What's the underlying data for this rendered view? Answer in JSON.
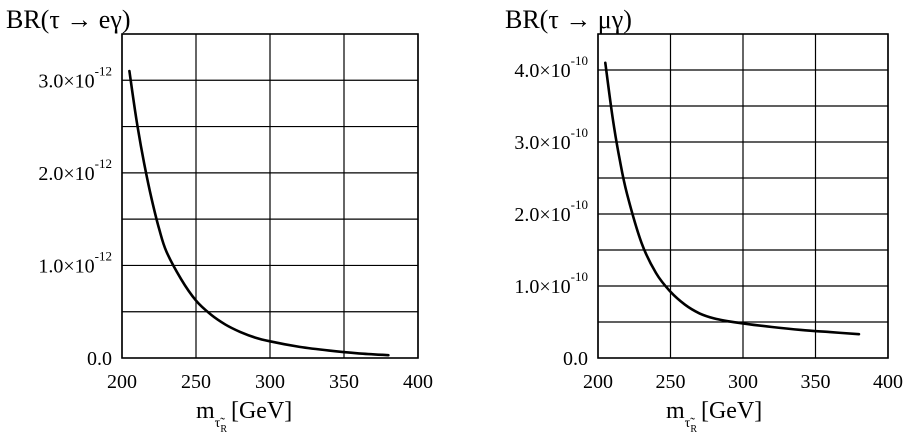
{
  "chart_data": [
    {
      "type": "line",
      "title": "BR(τ → eγ)",
      "xlabel": {
        "base": "m",
        "sub": "τ̃",
        "subsub": "R",
        "unit": "[GeV]"
      },
      "ylabel": "",
      "xlim": [
        200,
        400
      ],
      "ylim": [
        0,
        3.5e-12
      ],
      "grid": true,
      "x_ticks": [
        {
          "value": 200,
          "label": "200"
        },
        {
          "value": 250,
          "label": "250"
        },
        {
          "value": 300,
          "label": "300"
        },
        {
          "value": 350,
          "label": "350"
        },
        {
          "value": 400,
          "label": "400"
        }
      ],
      "y_ticks": [
        {
          "value": 0,
          "mant": "0.0",
          "exp": ""
        },
        {
          "value": 1e-12,
          "mant": "1.0×10",
          "exp": "-12"
        },
        {
          "value": 2e-12,
          "mant": "2.0×10",
          "exp": "-12"
        },
        {
          "value": 3e-12,
          "mant": "3.0×10",
          "exp": "-12"
        }
      ],
      "y_grid": [
        5e-13,
        1e-12,
        1.5e-12,
        2e-12,
        2.5e-12,
        3e-12
      ],
      "series": [
        {
          "x": [
            205,
            210,
            215,
            220,
            225,
            230,
            240,
            250,
            260,
            270,
            280,
            290,
            300,
            320,
            340,
            360,
            380
          ],
          "y": [
            3.1e-12,
            2.55e-12,
            2.1e-12,
            1.72e-12,
            1.4e-12,
            1.15e-12,
            8.5e-13,
            6.2e-13,
            4.7e-13,
            3.6e-13,
            2.8e-13,
            2.2e-13,
            1.8e-13,
            1.2e-13,
            8e-14,
            5e-14,
            3e-14
          ]
        }
      ]
    },
    {
      "type": "line",
      "title": "BR(τ → μγ)",
      "xlabel": {
        "base": "m",
        "sub": "τ̃",
        "subsub": "R",
        "unit": "[GeV]"
      },
      "ylabel": "",
      "xlim": [
        200,
        400
      ],
      "ylim": [
        0,
        4.5e-10
      ],
      "grid": true,
      "x_ticks": [
        {
          "value": 200,
          "label": "200"
        },
        {
          "value": 250,
          "label": "250"
        },
        {
          "value": 300,
          "label": "300"
        },
        {
          "value": 350,
          "label": "350"
        },
        {
          "value": 400,
          "label": "400"
        }
      ],
      "y_ticks": [
        {
          "value": 0,
          "mant": "0.0",
          "exp": ""
        },
        {
          "value": 1e-10,
          "mant": "1.0×10",
          "exp": "-10"
        },
        {
          "value": 2e-10,
          "mant": "2.0×10",
          "exp": "-10"
        },
        {
          "value": 3e-10,
          "mant": "3.0×10",
          "exp": "-10"
        },
        {
          "value": 4e-10,
          "mant": "4.0×10",
          "exp": "-10"
        }
      ],
      "y_grid": [
        5e-11,
        1e-10,
        1.5e-10,
        2e-10,
        2.5e-10,
        3e-10,
        3.5e-10,
        4e-10
      ],
      "series": [
        {
          "x": [
            205,
            210,
            215,
            220,
            230,
            240,
            250,
            260,
            270,
            280,
            290,
            300,
            320,
            340,
            360,
            380
          ],
          "y": [
            4.1e-10,
            3.35e-10,
            2.75e-10,
            2.28e-10,
            1.6e-10,
            1.18e-10,
            9.2e-11,
            7.4e-11,
            6.2e-11,
            5.5e-11,
            5.1e-11,
            4.8e-11,
            4.3e-11,
            3.9e-11,
            3.6e-11,
            3.3e-11
          ]
        }
      ]
    }
  ]
}
